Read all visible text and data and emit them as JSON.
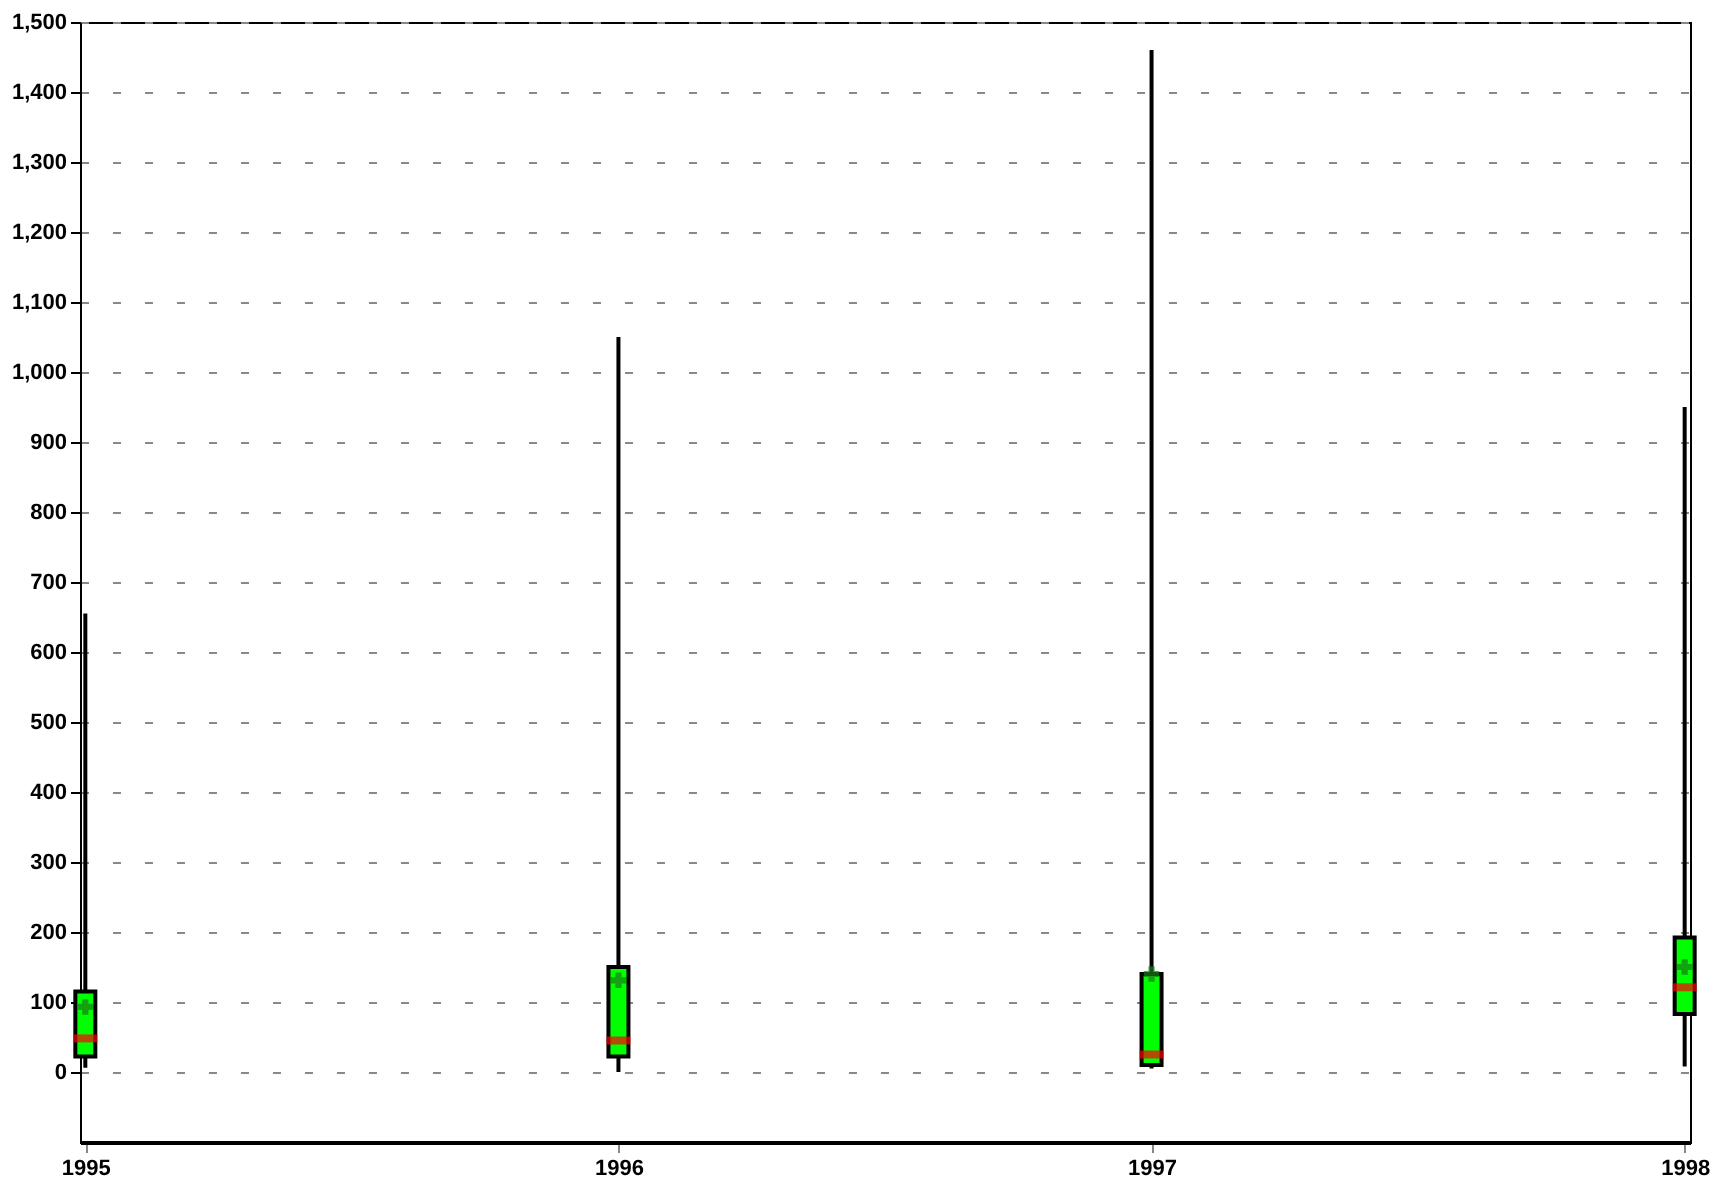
{
  "chart_data": {
    "type": "box",
    "categories": [
      "1995",
      "1996",
      "1997",
      "1998"
    ],
    "boxes": [
      {
        "low": 6,
        "q1": 22,
        "median": 48,
        "q3": 115,
        "high": 655,
        "mean": 93
      },
      {
        "low": 0,
        "q1": 22,
        "median": 45,
        "q3": 150,
        "high": 1050,
        "mean": 131
      },
      {
        "low": 5,
        "q1": 10,
        "median": 25,
        "q3": 140,
        "high": 1460,
        "mean": 140
      },
      {
        "low": 8,
        "q1": 83,
        "median": 121,
        "q3": 192,
        "high": 950,
        "mean": 150
      }
    ],
    "color": "#00ff00",
    "ylim": [
      -100,
      1500
    ],
    "yticks": [
      0,
      100,
      200,
      300,
      400,
      500,
      600,
      700,
      800,
      900,
      {
        "value": 1000,
        "label": "1,000"
      },
      {
        "value": 1100,
        "label": "1,100"
      },
      {
        "value": 1200,
        "label": "1,200"
      },
      {
        "value": 1300,
        "label": "1,300"
      },
      {
        "value": 1400,
        "label": "1,400"
      },
      {
        "value": 1500,
        "label": "1,500"
      }
    ],
    "grid": "y"
  }
}
